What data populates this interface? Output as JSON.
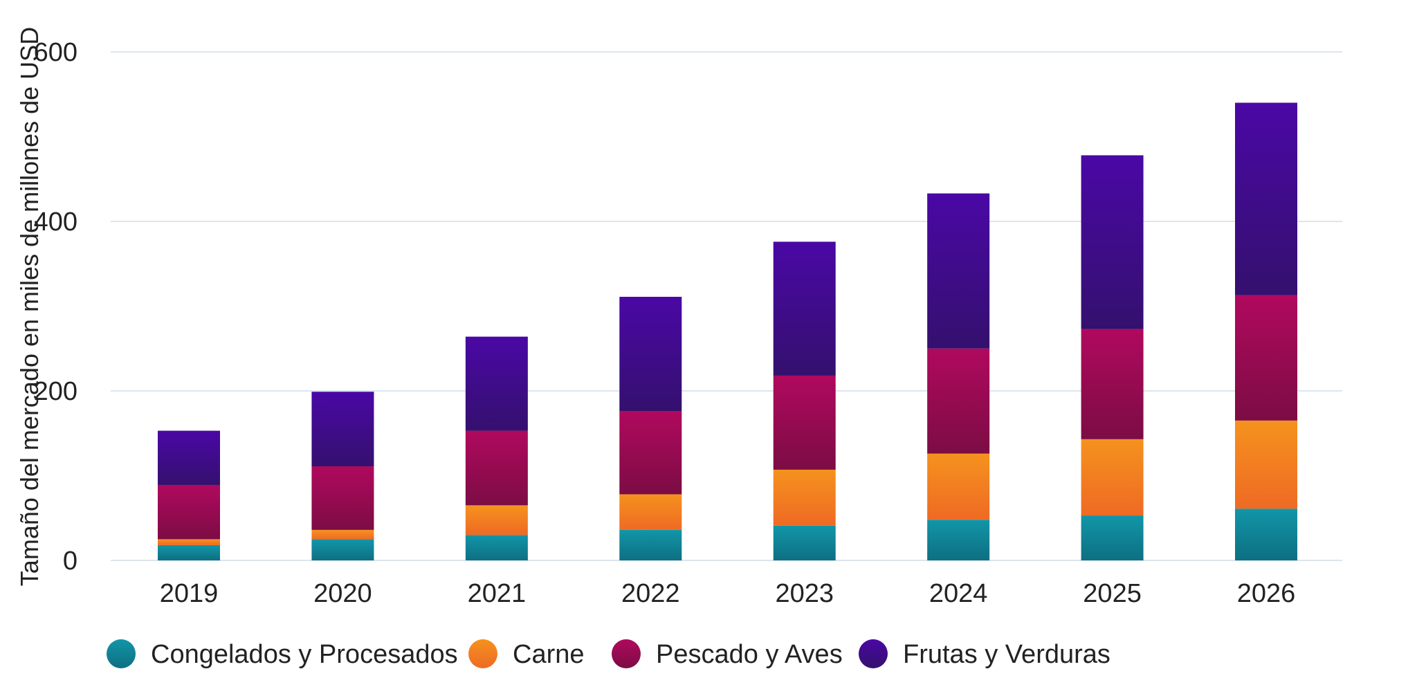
{
  "chart_data": {
    "type": "bar",
    "stacked": true,
    "title": "",
    "xlabel": "",
    "ylabel": "Tamaño del mercado en miles de millones de USD",
    "ylim": [
      0,
      600
    ],
    "yticks": [
      0,
      200,
      400,
      600
    ],
    "grid": true,
    "legend_position": "bottom",
    "categories": [
      "2019",
      "2020",
      "2021",
      "2022",
      "2023",
      "2024",
      "2025",
      "2026"
    ],
    "series": [
      {
        "name": "Congelados y Procesados",
        "color": "#1196a8",
        "color_dark": "#0e6f82",
        "values": [
          18,
          25,
          30,
          36,
          41,
          48,
          53,
          61
        ]
      },
      {
        "name": "Carne",
        "color": "#f5921e",
        "color_dark": "#ef6a24",
        "values": [
          7,
          11,
          35,
          42,
          66,
          78,
          90,
          104
        ]
      },
      {
        "name": "Pescado y Aves",
        "color": "#b0095e",
        "color_dark": "#7c0c44",
        "values": [
          64,
          75,
          88,
          98,
          111,
          124,
          130,
          148
        ]
      },
      {
        "name": "Frutas y Verduras",
        "color": "#4a08a5",
        "color_dark": "#34106e",
        "values": [
          64,
          88,
          111,
          135,
          158,
          183,
          205,
          227
        ]
      }
    ]
  }
}
